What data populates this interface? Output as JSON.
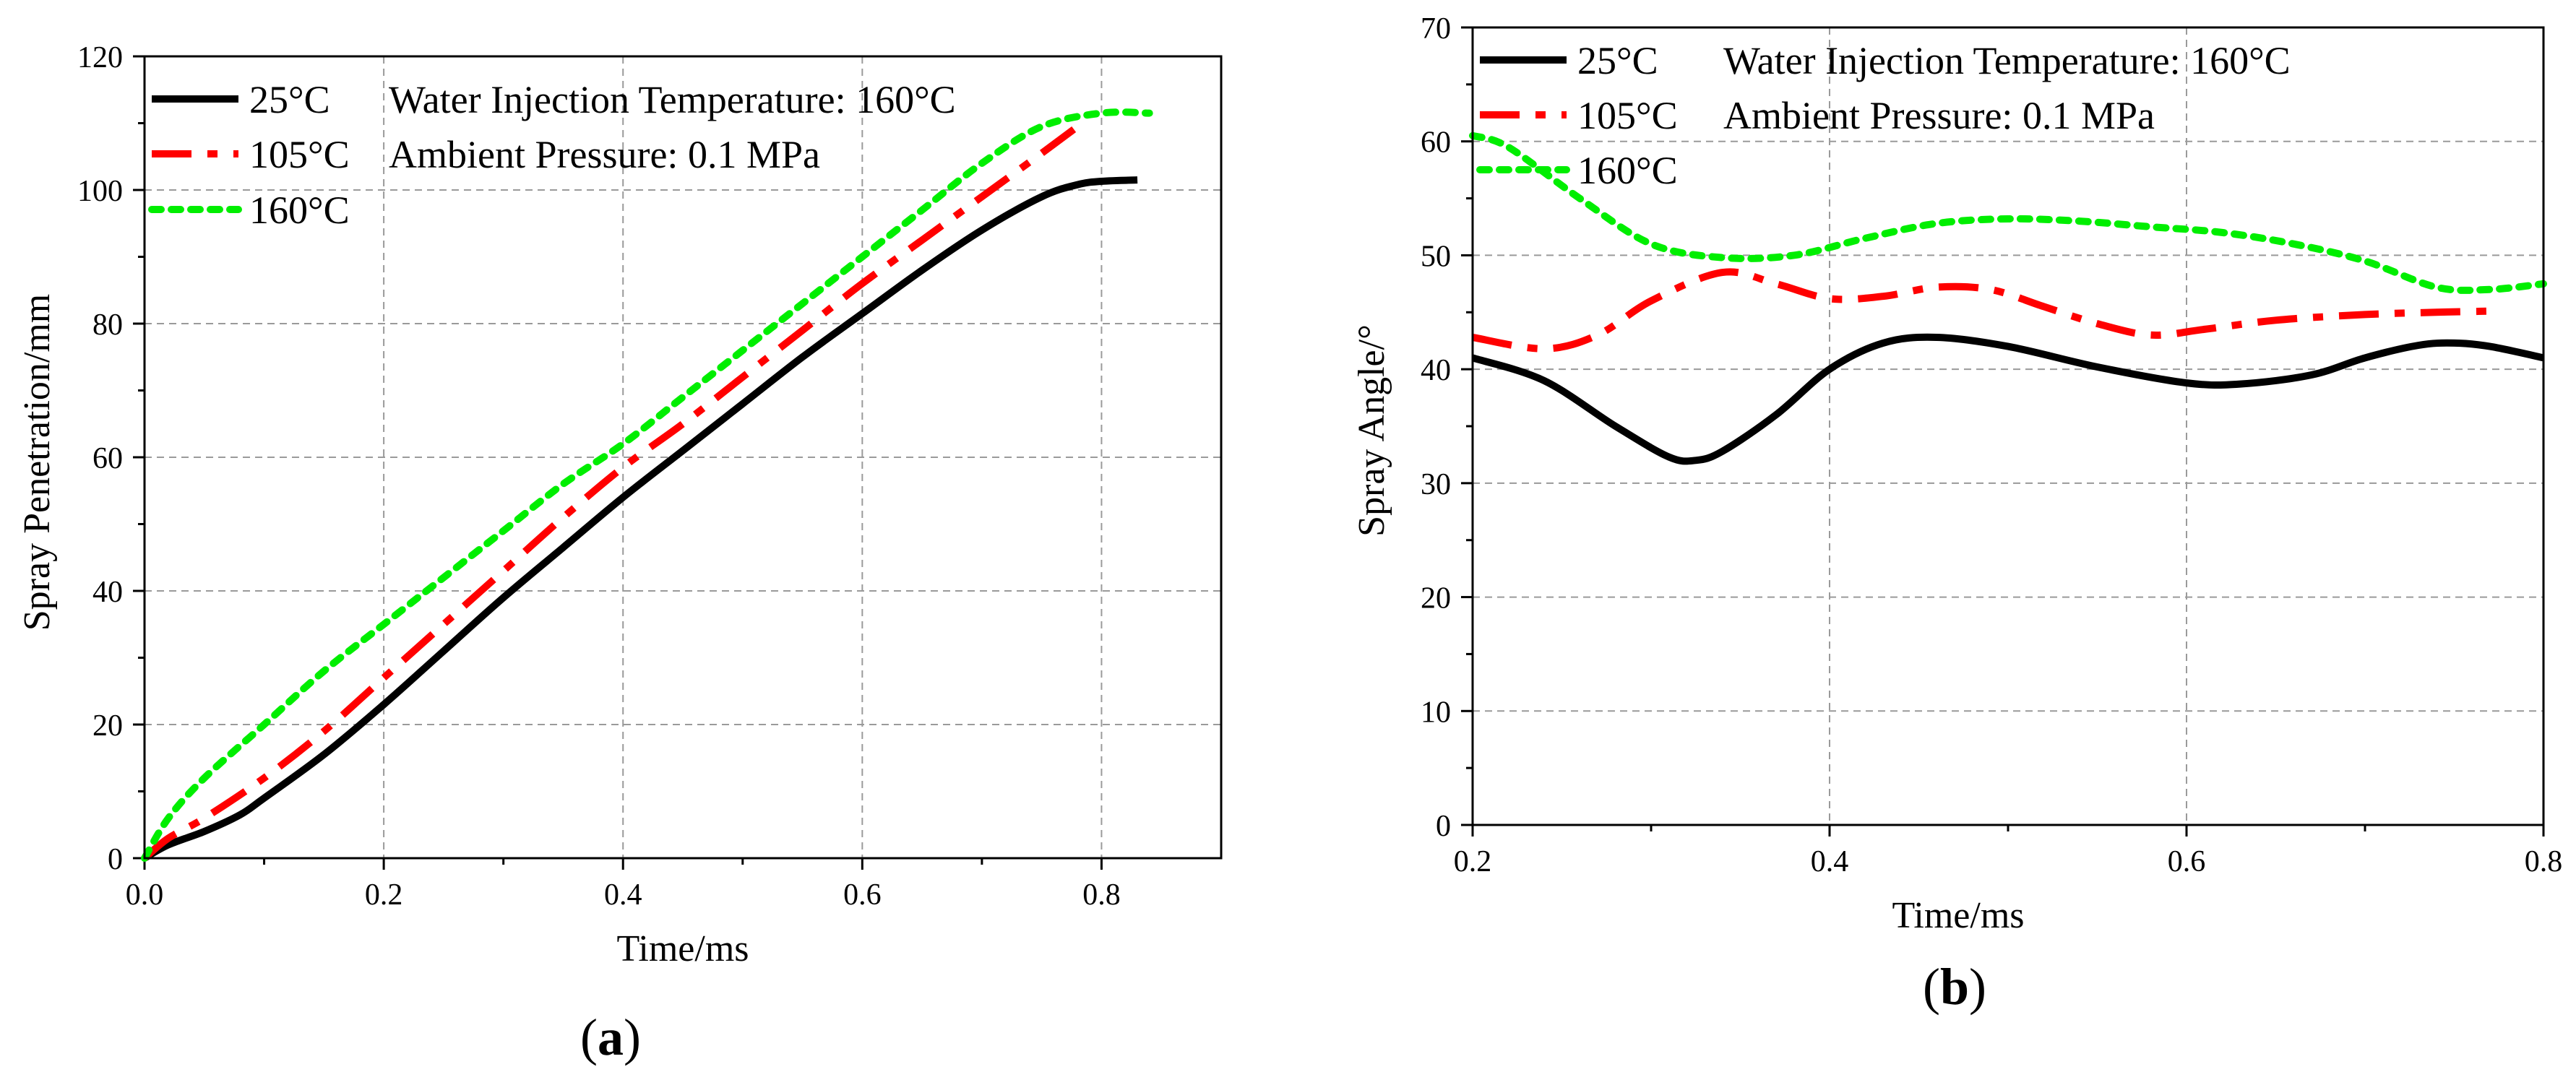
{
  "chart_data": [
    {
      "id": "a",
      "type": "line",
      "panel_label": "(a)",
      "panel_letter": "a",
      "title": "",
      "xlabel": "Time/ms",
      "ylabel": "Spray Penetration/mm",
      "xlim": [
        0.0,
        0.9
      ],
      "ylim": [
        0,
        120
      ],
      "x_ticks": [
        0.0,
        0.2,
        0.4,
        0.6,
        0.8
      ],
      "x_tick_labels": [
        "0.0",
        "0.2",
        "0.4",
        "0.6",
        "0.8"
      ],
      "y_ticks": [
        0,
        20,
        40,
        60,
        80,
        100,
        120
      ],
      "y_tick_labels": [
        "0",
        "20",
        "40",
        "60",
        "80",
        "100",
        "120"
      ],
      "grid": true,
      "legend_position": "top-left",
      "annotations": [
        "Water Injection Temperature: 160°C",
        "Ambient Pressure: 0.1 MPa"
      ],
      "series": [
        {
          "name": "25°C",
          "color": "#000000",
          "dash": "solid",
          "x": [
            0.0,
            0.02,
            0.05,
            0.08,
            0.1,
            0.15,
            0.2,
            0.25,
            0.3,
            0.35,
            0.4,
            0.45,
            0.5,
            0.55,
            0.6,
            0.65,
            0.7,
            0.75,
            0.78,
            0.8,
            0.83
          ],
          "y": [
            0,
            2,
            4,
            6.5,
            9,
            15.5,
            23,
            31,
            39,
            46.5,
            54,
            61,
            68,
            75,
            81.5,
            88,
            94,
            99,
            100.8,
            101.3,
            101.5
          ]
        },
        {
          "name": "105°C",
          "color": "#ff0000",
          "dash": "dashdot",
          "x": [
            0.0,
            0.02,
            0.05,
            0.1,
            0.15,
            0.2,
            0.25,
            0.3,
            0.35,
            0.4,
            0.45,
            0.5,
            0.55,
            0.6,
            0.65,
            0.7,
            0.75,
            0.78
          ],
          "y": [
            0,
            3,
            6,
            12,
            19,
            27,
            35,
            43,
            51,
            58.5,
            65,
            72,
            79,
            86,
            92.5,
            99,
            105.5,
            109.5
          ]
        },
        {
          "name": "160°C",
          "color": "#00ee00",
          "dash": "dot",
          "x": [
            0.0,
            0.02,
            0.05,
            0.1,
            0.15,
            0.2,
            0.25,
            0.3,
            0.35,
            0.4,
            0.45,
            0.5,
            0.55,
            0.6,
            0.65,
            0.7,
            0.75,
            0.8,
            0.84
          ],
          "y": [
            0,
            6,
            12,
            20,
            28,
            35,
            42,
            49,
            56,
            62,
            69,
            76,
            83,
            90,
            97,
            104,
            109.5,
            111.5,
            111.5
          ]
        }
      ]
    },
    {
      "id": "b",
      "type": "line",
      "panel_label": "(b)",
      "panel_letter": "b",
      "title": "",
      "xlabel": "Time/ms",
      "ylabel": "Spray Angle/°",
      "xlim": [
        0.2,
        0.8
      ],
      "ylim": [
        0,
        70
      ],
      "x_ticks": [
        0.2,
        0.4,
        0.6,
        0.8
      ],
      "x_tick_labels": [
        "0.2",
        "0.4",
        "0.6",
        "0.8"
      ],
      "y_ticks": [
        0,
        10,
        20,
        30,
        40,
        50,
        60,
        70
      ],
      "y_tick_labels": [
        "0",
        "10",
        "20",
        "30",
        "40",
        "50",
        "60",
        "70"
      ],
      "grid": true,
      "legend_position": "top-left",
      "annotations": [
        "Water Injection Temperature: 160°C",
        "Ambient Pressure: 0.1 MPa"
      ],
      "series": [
        {
          "name": "25°C",
          "color": "#000000",
          "dash": "solid",
          "x": [
            0.2,
            0.24,
            0.28,
            0.31,
            0.325,
            0.34,
            0.37,
            0.4,
            0.43,
            0.46,
            0.5,
            0.55,
            0.6,
            0.63,
            0.67,
            0.7,
            0.73,
            0.75,
            0.77,
            0.8
          ],
          "y": [
            41,
            39,
            35,
            32.3,
            32,
            32.8,
            36,
            40,
            42.3,
            42.8,
            42,
            40.2,
            38.8,
            38.7,
            39.5,
            41,
            42.1,
            42.3,
            42,
            41
          ]
        },
        {
          "name": "105°C",
          "color": "#ff0000",
          "dash": "dashdot",
          "x": [
            0.2,
            0.24,
            0.27,
            0.3,
            0.34,
            0.37,
            0.4,
            0.43,
            0.46,
            0.49,
            0.52,
            0.55,
            0.58,
            0.61,
            0.65,
            0.7,
            0.74,
            0.77
          ],
          "y": [
            42.8,
            41.8,
            43,
            46,
            48.5,
            47.5,
            46.2,
            46.4,
            47.2,
            47,
            45.5,
            44,
            43,
            43.5,
            44.3,
            44.8,
            45,
            45.1
          ]
        },
        {
          "name": "160°C",
          "color": "#00ee00",
          "dash": "dot",
          "x": [
            0.2,
            0.22,
            0.26,
            0.3,
            0.34,
            0.38,
            0.42,
            0.46,
            0.5,
            0.54,
            0.58,
            0.62,
            0.66,
            0.7,
            0.74,
            0.77,
            0.8
          ],
          "y": [
            60.5,
            59.5,
            55,
            51,
            49.8,
            50,
            51.5,
            52.8,
            53.2,
            53,
            52.5,
            52,
            51,
            49.5,
            47.2,
            47,
            47.5
          ]
        }
      ]
    }
  ]
}
